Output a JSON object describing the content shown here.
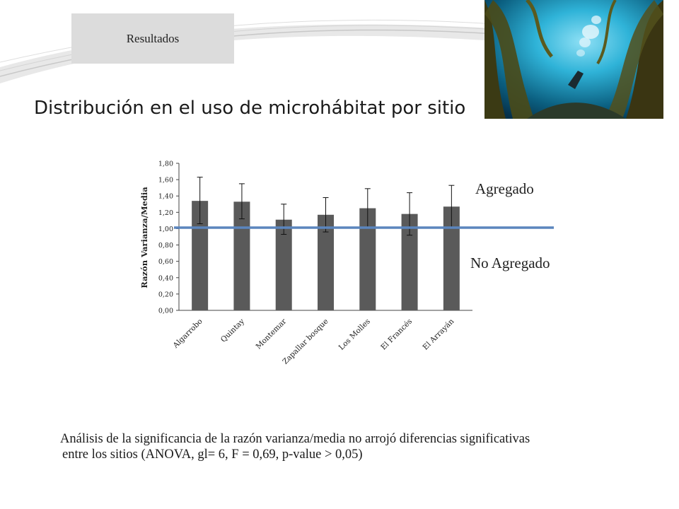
{
  "header": {
    "section_tab": "Resultados"
  },
  "slide": {
    "title": "Distribución en el uso de microhábitat por sitio"
  },
  "zones": {
    "upper": "Agregado",
    "lower": "No Agregado"
  },
  "note": {
    "line1": "Análisis de la significancia de la razón varianza/media  no arrojó diferencias significativas",
    "line2": "entre los sitios (ANOVA, gl= 6, F = 0,69, p-value > 0,05)"
  },
  "photo": {
    "icon": "kelp-forest-diver-photo"
  },
  "colors": {
    "bar": "#5a5a5a",
    "reference_line": "#5b85bd",
    "tab": "#dcdcdc"
  },
  "chart_data": {
    "type": "bar",
    "categories": [
      "Algarrobo",
      "Quintay",
      "Montemar",
      "Zapallar bosque",
      "Los Molles",
      "El Francés",
      "El Arrayán"
    ],
    "values": [
      1.34,
      1.33,
      1.11,
      1.17,
      1.25,
      1.18,
      1.27
    ],
    "error_upper": [
      1.63,
      1.55,
      1.3,
      1.38,
      1.49,
      1.44,
      1.53
    ],
    "error_lower": [
      1.06,
      1.12,
      0.93,
      0.96,
      1.02,
      0.92,
      1.02
    ],
    "ylabel": "Razón Varianza/Media",
    "ylim": [
      0,
      1.8
    ],
    "yticks": [
      "0,00",
      "0,20",
      "0,40",
      "0,60",
      "0,80",
      "1,00",
      "1,20",
      "1,40",
      "1,60",
      "1,80"
    ],
    "reference_line": 1.0,
    "grid": false
  }
}
